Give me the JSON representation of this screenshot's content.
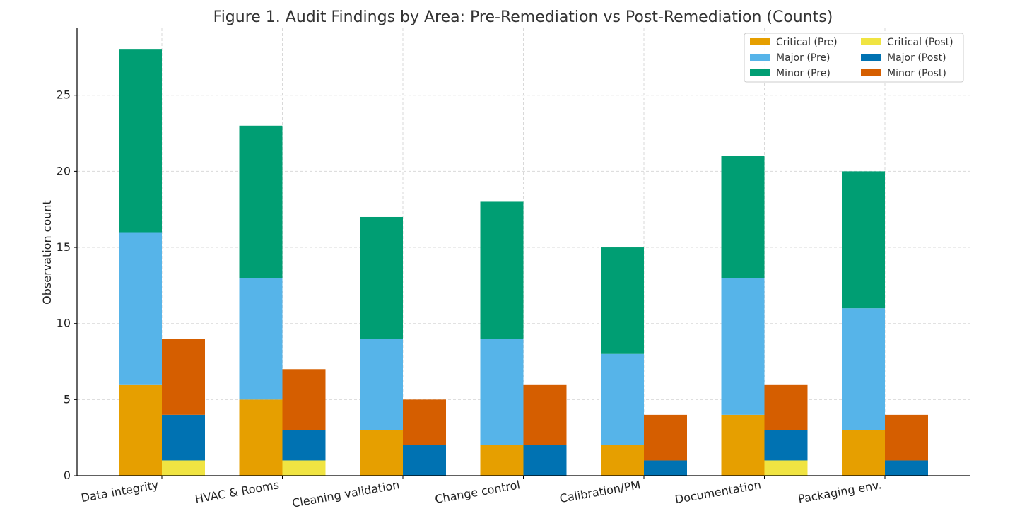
{
  "chart_data": {
    "type": "bar",
    "title": "Figure 1. Audit Findings by Area: Pre-Remediation vs Post-Remediation (Counts)",
    "xlabel": "",
    "ylabel": "Observation count",
    "ylim": [
      0,
      29.4
    ],
    "yticks": [
      0,
      5,
      10,
      15,
      20,
      25
    ],
    "grid": true,
    "legend_position": "top-right",
    "categories": [
      "Data integrity",
      "HVAC & Rooms",
      "Cleaning validation",
      "Change control",
      "Calibration/PM",
      "Documentation",
      "Packaging env."
    ],
    "groups": [
      {
        "name": "Pre",
        "series": [
          {
            "name": "Critical (Pre)",
            "color": "#E69F00",
            "values": [
              6,
              5,
              3,
              2,
              2,
              4,
              3
            ]
          },
          {
            "name": "Major (Pre)",
            "color": "#56B4E9",
            "values": [
              10,
              8,
              6,
              7,
              6,
              9,
              8
            ]
          },
          {
            "name": "Minor (Pre)",
            "color": "#009E73",
            "values": [
              12,
              10,
              8,
              9,
              7,
              8,
              9
            ]
          }
        ]
      },
      {
        "name": "Post",
        "series": [
          {
            "name": "Critical (Post)",
            "color": "#F0E442",
            "values": [
              1,
              1,
              0,
              0,
              0,
              1,
              0
            ]
          },
          {
            "name": "Major (Post)",
            "color": "#0072B2",
            "values": [
              3,
              2,
              2,
              2,
              1,
              2,
              1
            ]
          },
          {
            "name": "Minor (Post)",
            "color": "#D55E00",
            "values": [
              5,
              4,
              3,
              4,
              3,
              3,
              3
            ]
          }
        ]
      }
    ],
    "legend": [
      [
        "Critical (Pre)",
        "#E69F00"
      ],
      [
        "Major (Pre)",
        "#56B4E9"
      ],
      [
        "Minor (Pre)",
        "#009E73"
      ],
      [
        "Critical (Post)",
        "#F0E442"
      ],
      [
        "Major (Post)",
        "#0072B2"
      ],
      [
        "Minor (Post)",
        "#D55E00"
      ]
    ]
  }
}
